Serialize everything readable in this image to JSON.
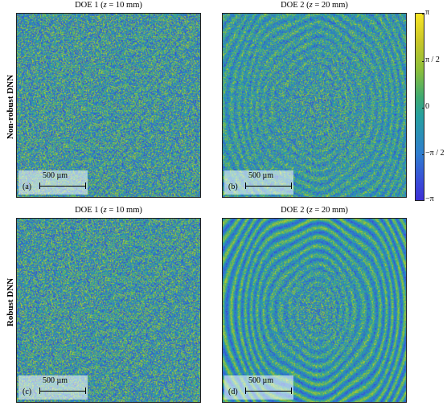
{
  "panels": [
    {
      "id": "a",
      "title_pre": "DOE 1 (",
      "title_var": "z",
      "title_post": " = 10 mm)",
      "letter": "(a)",
      "scale": "500 µm"
    },
    {
      "id": "b",
      "title_pre": "DOE 2 (",
      "title_var": "z",
      "title_post": " = 20 mm)",
      "letter": "(b)",
      "scale": "500 µm"
    },
    {
      "id": "c",
      "title_pre": "DOE 1 (",
      "title_var": "z",
      "title_post": " = 10 mm)",
      "letter": "(c)",
      "scale": "500 µm"
    },
    {
      "id": "d",
      "title_pre": "DOE 2 (",
      "title_var": "z",
      "title_post": " = 20 mm)",
      "letter": "(d)",
      "scale": "500 µm"
    }
  ],
  "rows": {
    "top": "Non-robust DNN",
    "bottom": "Robust DNN"
  },
  "colorbar": {
    "ticks": [
      "π",
      "π / 2",
      "0",
      "−π / 2",
      "−π"
    ],
    "colors": [
      "#f9e625",
      "#8cbf3a",
      "#26a0a0",
      "#2f7ecf",
      "#3d2fd6"
    ]
  }
}
